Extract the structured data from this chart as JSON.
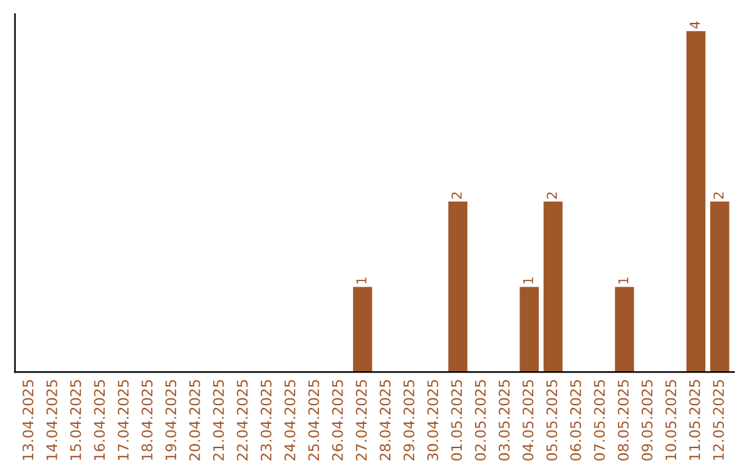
{
  "chart_data": {
    "type": "bar",
    "categories": [
      "13.04.2025",
      "14.04.2025",
      "15.04.2025",
      "16.04.2025",
      "17.04.2025",
      "18.04.2025",
      "19.04.2025",
      "20.04.2025",
      "21.04.2025",
      "22.04.2025",
      "23.04.2025",
      "24.04.2025",
      "25.04.2025",
      "26.04.2025",
      "27.04.2025",
      "28.04.2025",
      "29.04.2025",
      "30.04.2025",
      "01.05.2025",
      "02.05.2025",
      "03.05.2025",
      "04.05.2025",
      "05.05.2025",
      "06.05.2025",
      "07.05.2025",
      "08.05.2025",
      "09.05.2025",
      "10.05.2025",
      "11.05.2025",
      "12.05.2025"
    ],
    "values": [
      null,
      null,
      null,
      null,
      null,
      null,
      null,
      null,
      null,
      null,
      null,
      null,
      null,
      null,
      1,
      null,
      null,
      null,
      2,
      null,
      null,
      1,
      2,
      null,
      null,
      1,
      null,
      null,
      4,
      2
    ],
    "value_labels": [
      null,
      null,
      null,
      null,
      null,
      null,
      null,
      null,
      null,
      null,
      null,
      null,
      null,
      null,
      "1",
      null,
      null,
      null,
      "2",
      null,
      null,
      "1",
      "2",
      null,
      null,
      "1",
      null,
      null,
      "4",
      "2"
    ],
    "color": "#a0582a",
    "tick_labels": "x",
    "grid": false,
    "legend": false
  }
}
